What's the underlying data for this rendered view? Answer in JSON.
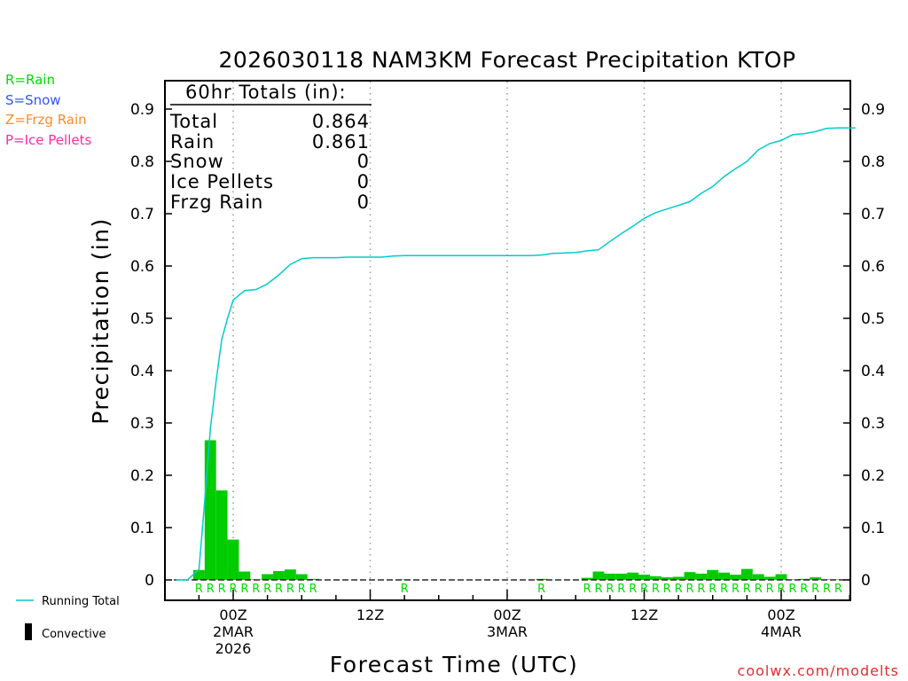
{
  "chart_data": {
    "type": "bar+line",
    "title": "2026030118 NAM3KM Forecast Precipitation KTOP",
    "xlabel": "Forecast Time (UTC)",
    "ylabel": "Precipitation (in)",
    "ylim": [
      0,
      0.95
    ],
    "yticks": [
      "0",
      "0.1",
      "0.2",
      "0.3",
      "0.4",
      "0.5",
      "0.6",
      "0.7",
      "0.8",
      "0.9"
    ],
    "xlim_hours": [
      -5.5,
      54.5
    ],
    "x_major_ticks": [
      {
        "hour": 0,
        "lines": [
          "00Z",
          "2MAR",
          "2026"
        ]
      },
      {
        "hour": 12,
        "lines": [
          "12Z"
        ]
      },
      {
        "hour": 24,
        "lines": [
          "00Z",
          "3MAR"
        ]
      },
      {
        "hour": 36,
        "lines": [
          "12Z"
        ]
      },
      {
        "hour": 48,
        "lines": [
          "00Z",
          "4MAR"
        ]
      }
    ],
    "grid": "dotted vertical at major ticks",
    "type_legend": [
      {
        "label": "R=Rain",
        "color": "#00dd00"
      },
      {
        "label": "S=Snow",
        "color": "#3355ff"
      },
      {
        "label": "Z=Frzg Rain",
        "color": "#ff8a2a"
      },
      {
        "label": "P=Ice Pellets",
        "color": "#ff2ba0"
      }
    ],
    "totals": {
      "header": "60hr Totals (in):",
      "rows": [
        {
          "label": "Total",
          "value": "0.864"
        },
        {
          "label": "Rain",
          "value": "0.861"
        },
        {
          "label": "Snow",
          "value": "0"
        },
        {
          "label": "Ice Pellets",
          "value": "0"
        },
        {
          "label": "Frzg Rain",
          "value": "0"
        }
      ]
    },
    "hourly_precip": {
      "name": "Hourly Precipitation",
      "color": "#00cc00",
      "hours": [
        -3,
        -2,
        -1,
        0,
        1,
        2,
        3,
        4,
        5,
        6,
        7,
        15,
        27,
        31,
        32,
        33,
        34,
        35,
        36,
        37,
        38,
        39,
        40,
        41,
        42,
        43,
        44,
        45,
        46,
        47,
        48,
        49,
        50,
        51,
        52,
        53
      ],
      "values": [
        0.019,
        0.267,
        0.171,
        0.077,
        0.016,
        0.001,
        0.011,
        0.017,
        0.02,
        0.011,
        0.002,
        0.001,
        0.002,
        0.004,
        0.016,
        0.012,
        0.012,
        0.014,
        0.01,
        0.007,
        0.005,
        0.006,
        0.015,
        0.012,
        0.019,
        0.014,
        0.01,
        0.021,
        0.011,
        0.006,
        0.011,
        0.001,
        0.002,
        0.005,
        0.001,
        0.001
      ]
    },
    "precip_type_markers": {
      "hours": [
        -3,
        -2,
        -1,
        0,
        1,
        2,
        3,
        4,
        5,
        6,
        7,
        15,
        27,
        31,
        32,
        33,
        34,
        35,
        36,
        37,
        38,
        39,
        40,
        41,
        42,
        43,
        44,
        45,
        46,
        47,
        48,
        49,
        50,
        51,
        52,
        53
      ],
      "symbol": "R"
    },
    "running_total": {
      "name": "Running Total",
      "color": "#00cccc",
      "hours": [
        -5,
        -4,
        -3.5,
        -3,
        -2.5,
        -2,
        -1.5,
        -1,
        -0.5,
        0,
        1,
        2,
        3,
        4,
        5,
        6,
        7,
        8,
        9,
        10,
        11,
        12,
        13,
        14,
        15,
        16,
        17,
        18,
        19,
        20,
        21,
        22,
        23,
        24,
        25,
        26,
        27,
        28,
        29,
        30,
        31,
        32,
        33,
        34,
        35,
        36,
        37,
        38,
        39,
        40,
        41,
        42,
        43,
        44,
        45,
        46,
        47,
        48,
        49,
        50,
        51,
        52,
        53,
        54.5
      ],
      "values": [
        0.0,
        0.0,
        0.01,
        0.02,
        0.15,
        0.29,
        0.38,
        0.46,
        0.5,
        0.535,
        0.553,
        0.555,
        0.566,
        0.583,
        0.603,
        0.614,
        0.616,
        0.616,
        0.616,
        0.617,
        0.617,
        0.617,
        0.617,
        0.619,
        0.62,
        0.62,
        0.62,
        0.62,
        0.62,
        0.62,
        0.62,
        0.62,
        0.62,
        0.62,
        0.62,
        0.62,
        0.621,
        0.624,
        0.625,
        0.626,
        0.629,
        0.631,
        0.647,
        0.662,
        0.676,
        0.691,
        0.702,
        0.709,
        0.716,
        0.723,
        0.739,
        0.752,
        0.771,
        0.786,
        0.8,
        0.822,
        0.834,
        0.84,
        0.851,
        0.853,
        0.857,
        0.863,
        0.864,
        0.864
      ]
    },
    "bottom_legend": [
      {
        "label": "Running Total",
        "swatch": "line",
        "color": "#00cccc"
      },
      {
        "label": "Convective",
        "swatch": "bar",
        "color": "#000000"
      }
    ],
    "credit": "coolwx.com/modelts"
  }
}
